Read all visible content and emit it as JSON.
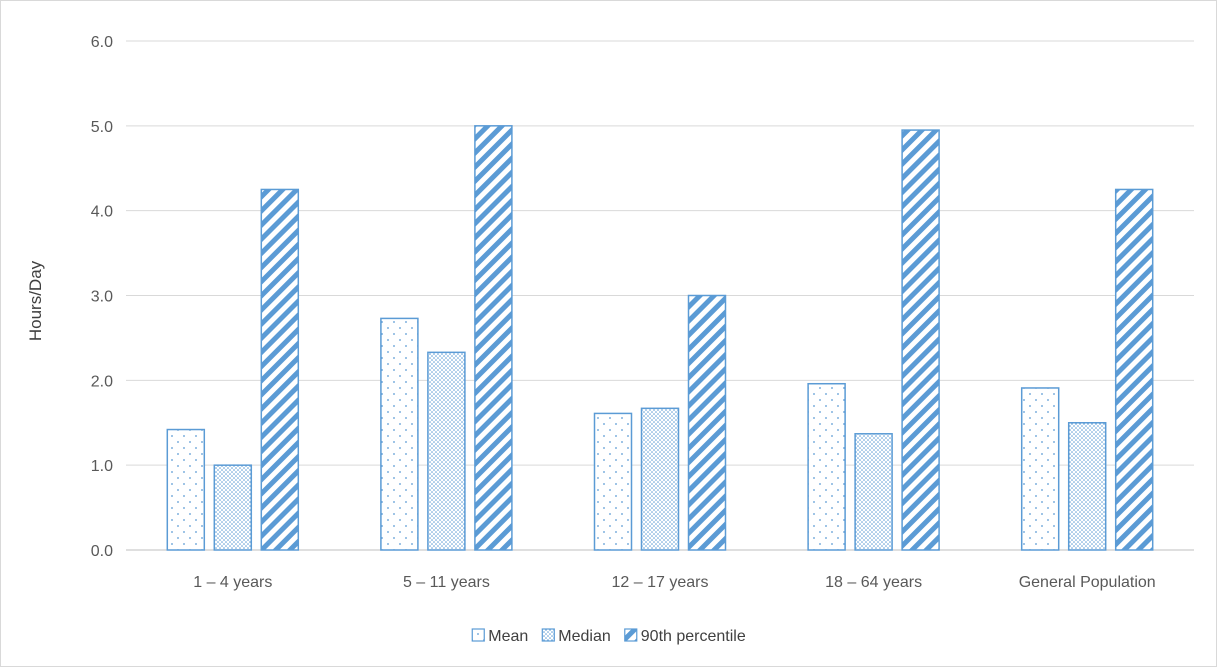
{
  "chart_data": {
    "type": "bar",
    "title": "",
    "xlabel": "",
    "ylabel": "Hours/Day",
    "ylim": [
      0,
      6
    ],
    "yticks": [
      "0.0",
      "1.0",
      "2.0",
      "3.0",
      "4.0",
      "5.0",
      "6.0"
    ],
    "grid": true,
    "legend_position": "bottom",
    "categories": [
      "1 – 4 years",
      "5 – 11 years",
      "12 – 17 years",
      "18 – 64 years",
      "General Population"
    ],
    "series": [
      {
        "name": "Mean",
        "values": [
          1.42,
          2.73,
          1.61,
          1.96,
          1.91
        ],
        "pattern": "dots-sparse"
      },
      {
        "name": "Median",
        "values": [
          1.0,
          2.33,
          1.67,
          1.37,
          1.5
        ],
        "pattern": "dots-dense"
      },
      {
        "name": "90th percentile",
        "values": [
          4.25,
          5.0,
          3.0,
          4.95,
          4.25
        ],
        "pattern": "diagonal-stripes"
      }
    ],
    "colors": {
      "series_stroke": "#5B9BD5",
      "grid": "#d9d9d9",
      "axis": "#bfbfbf"
    }
  }
}
